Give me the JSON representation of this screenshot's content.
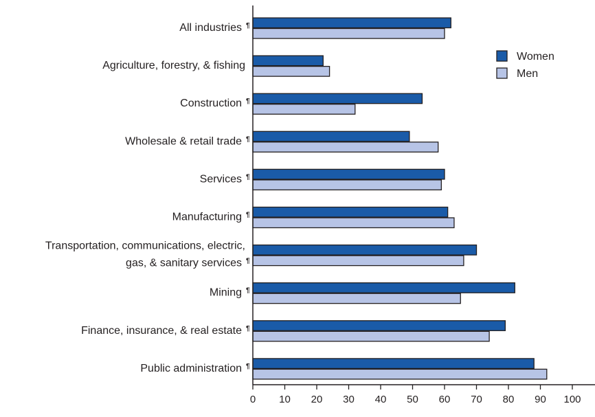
{
  "chart_data": {
    "type": "bar",
    "orientation": "horizontal",
    "categories": [
      {
        "lines": [
          "All industries"
        ],
        "note": "¶"
      },
      {
        "lines": [
          "Agriculture, forestry, & fishing"
        ],
        "note": ""
      },
      {
        "lines": [
          "Construction"
        ],
        "note": "¶"
      },
      {
        "lines": [
          "Wholesale & retail trade"
        ],
        "note": "¶"
      },
      {
        "lines": [
          "Services"
        ],
        "note": "¶"
      },
      {
        "lines": [
          "Manufacturing"
        ],
        "note": "¶"
      },
      {
        "lines": [
          "Transportation, communications, electric,",
          "gas, & sanitary services"
        ],
        "note": "¶"
      },
      {
        "lines": [
          "Mining"
        ],
        "note": "¶"
      },
      {
        "lines": [
          "Finance, insurance, & real estate"
        ],
        "note": "¶"
      },
      {
        "lines": [
          "Public administration"
        ],
        "note": "¶"
      }
    ],
    "series": [
      {
        "name": "Women",
        "color": "#1a5ba8",
        "values": [
          62,
          22,
          53,
          49,
          60,
          61,
          70,
          82,
          79,
          88
        ]
      },
      {
        "name": "Men",
        "color": "#b7c4e6",
        "values": [
          60,
          24,
          32,
          58,
          59,
          63,
          66,
          65,
          74,
          92
        ]
      }
    ],
    "xlim": [
      0,
      100
    ],
    "xticks": [
      0,
      10,
      20,
      30,
      40,
      50,
      60,
      70,
      80,
      90,
      100
    ],
    "title": "",
    "xlabel": "",
    "ylabel": "",
    "legend_position": "top-right",
    "grid": false,
    "bar_outline_color": "#231f20",
    "axis_color": "#231f20"
  }
}
